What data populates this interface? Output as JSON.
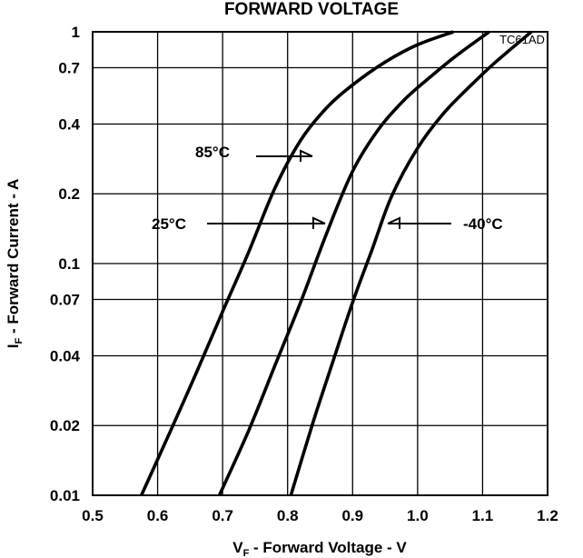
{
  "chart_data": {
    "type": "line",
    "title": "FORWARD VOLTAGE",
    "code": "TC61AD",
    "xlabel": {
      "symbol": "V",
      "sub": "F",
      "text": " - Forward Voltage - V"
    },
    "ylabel": {
      "symbol": "I",
      "sub": "F",
      "text": " - Forward Current - A"
    },
    "xlim": [
      0.5,
      1.2
    ],
    "ylim": [
      0.01,
      1
    ],
    "y_scale": "log",
    "grid": true,
    "x_ticks": [
      "0.5",
      "0.6",
      "0.7",
      "0.8",
      "0.9",
      "1.0",
      "1.1",
      "1.2"
    ],
    "y_ticks": [
      "0.01",
      "0.02",
      "0.04",
      "0.07",
      "0.1",
      "0.2",
      "0.4",
      "0.7",
      "1"
    ],
    "series": [
      {
        "name": "85°C",
        "points": [
          [
            0.575,
            0.01
          ],
          [
            0.62,
            0.019
          ],
          [
            0.66,
            0.034
          ],
          [
            0.7,
            0.062
          ],
          [
            0.74,
            0.112
          ],
          [
            0.78,
            0.21
          ],
          [
            0.82,
            0.34
          ],
          [
            0.86,
            0.47
          ],
          [
            0.9,
            0.59
          ],
          [
            0.95,
            0.74
          ],
          [
            1.0,
            0.88
          ],
          [
            1.055,
            1.0
          ]
        ]
      },
      {
        "name": "25°C",
        "points": [
          [
            0.695,
            0.01
          ],
          [
            0.74,
            0.019
          ],
          [
            0.78,
            0.036
          ],
          [
            0.82,
            0.068
          ],
          [
            0.86,
            0.135
          ],
          [
            0.9,
            0.25
          ],
          [
            0.94,
            0.38
          ],
          [
            0.98,
            0.51
          ],
          [
            1.02,
            0.64
          ],
          [
            1.06,
            0.79
          ],
          [
            1.11,
            1.0
          ]
        ]
      },
      {
        "name": "-40°C",
        "points": [
          [
            0.805,
            0.01
          ],
          [
            0.84,
            0.021
          ],
          [
            0.87,
            0.038
          ],
          [
            0.9,
            0.068
          ],
          [
            0.93,
            0.115
          ],
          [
            0.96,
            0.195
          ],
          [
            1.0,
            0.315
          ],
          [
            1.04,
            0.445
          ],
          [
            1.08,
            0.58
          ],
          [
            1.12,
            0.74
          ],
          [
            1.175,
            1.0
          ]
        ]
      }
    ],
    "annotations": [
      {
        "text": "85°C",
        "series": "85°C"
      },
      {
        "text": "25°C",
        "series": "25°C"
      },
      {
        "text": "-40°C",
        "series": "-40°C"
      }
    ]
  }
}
